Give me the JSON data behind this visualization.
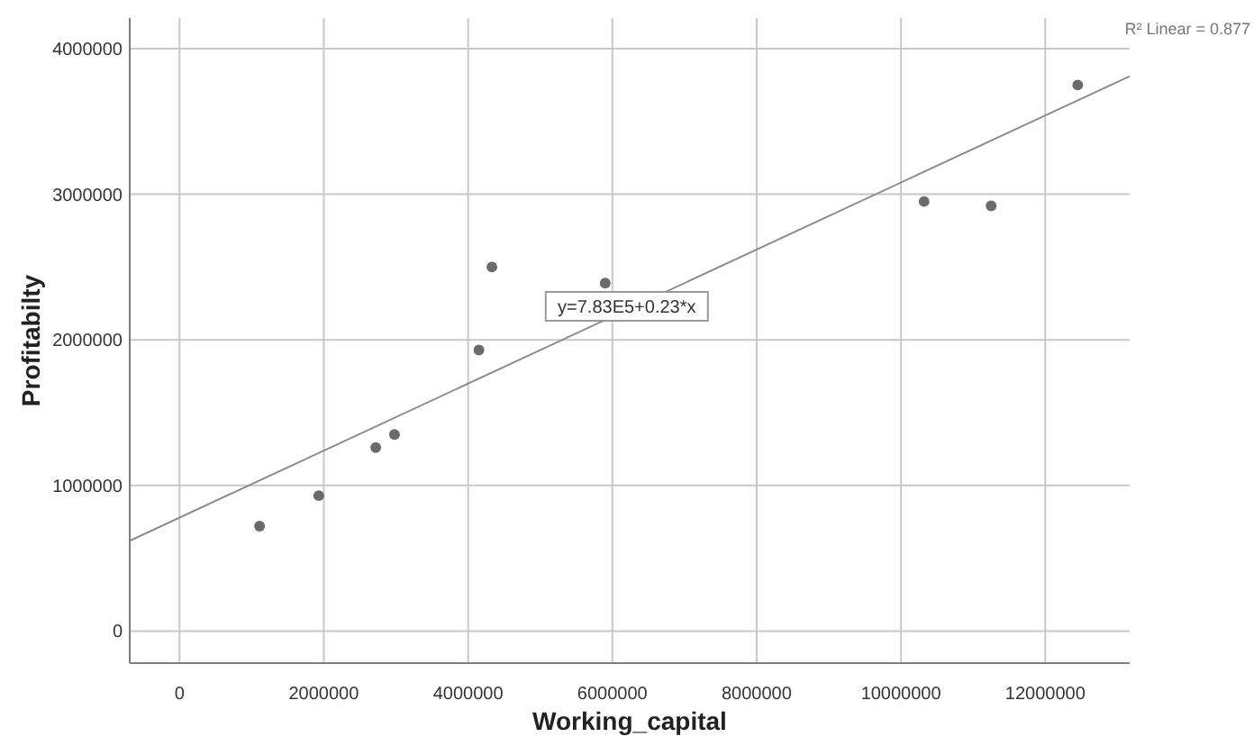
{
  "chart_data": {
    "type": "scatter",
    "xlabel": "Working_capital",
    "ylabel": "Profitabilty",
    "xlim": [
      -690000,
      13170000
    ],
    "ylim": [
      -220000,
      4210000
    ],
    "xticks": [
      0,
      2000000,
      4000000,
      6000000,
      8000000,
      10000000,
      12000000
    ],
    "yticks": [
      0,
      1000000,
      2000000,
      3000000,
      4000000
    ],
    "grid": true,
    "series": [
      {
        "marker": "circle",
        "color": "#6b6b6b",
        "x": [
          1110000,
          1930000,
          2720000,
          2980000,
          4150000,
          4330000,
          5900000,
          10320000,
          11250000,
          12450000
        ],
        "values": [
          720000,
          930000,
          1260000,
          1350000,
          1930000,
          2500000,
          2390000,
          2950000,
          2920000,
          3750000
        ]
      },
      {
        "type": "line",
        "marker": "none",
        "line_style": "solid",
        "color": "#8c8c8c",
        "x": [
          -690000,
          13170000
        ],
        "values": [
          620000,
          3810000
        ]
      }
    ],
    "annotations": [
      {
        "text": "y=7.83E5+0.23*x",
        "x": 6200000,
        "y": 2230000
      },
      "R² Linear = 0.877"
    ]
  }
}
